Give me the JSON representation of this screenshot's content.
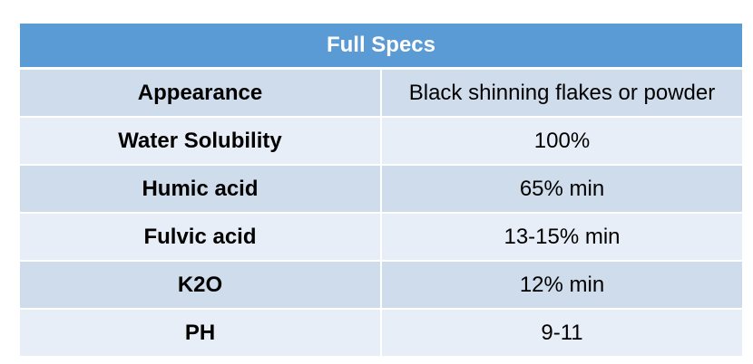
{
  "table": {
    "title": "Full Specs",
    "rows": [
      {
        "label": "Appearance",
        "value": "Black shinning flakes or powder"
      },
      {
        "label": "Water Solubility",
        "value": "100%"
      },
      {
        "label": "Humic acid",
        "value": "65% min"
      },
      {
        "label": "Fulvic acid",
        "value": "13-15% min"
      },
      {
        "label": "K2O",
        "value": "12% min"
      },
      {
        "label": "PH",
        "value": "9-11"
      }
    ],
    "colors": {
      "header_bg": "#5b9bd5",
      "row_dark": "#cfdcec",
      "row_light": "#e8eef7"
    }
  }
}
